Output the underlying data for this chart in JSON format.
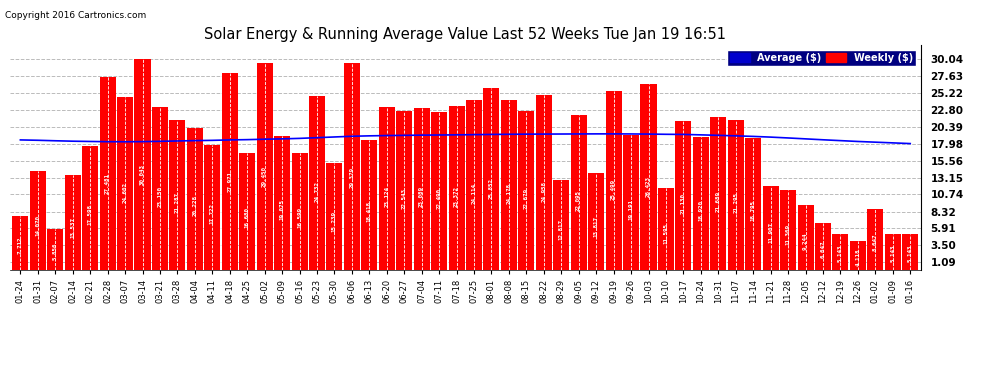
{
  "title": "Solar Energy & Running Average Value Last 52 Weeks Tue Jan 19 16:51",
  "copyright": "Copyright 2016 Cartronics.com",
  "bar_color": "#ff0000",
  "avg_line_color": "#0000ff",
  "background_color": "#ffffff",
  "plot_bg_color": "#ffffff",
  "grid_color": "#bbbbbb",
  "yticks": [
    1.09,
    3.5,
    5.91,
    8.32,
    10.74,
    13.15,
    15.56,
    17.98,
    20.39,
    22.8,
    25.22,
    27.63,
    30.04
  ],
  "ylim": [
    0,
    32.0
  ],
  "legend_avg_color": "#0000cd",
  "legend_weekly_color": "#ff0000",
  "categories": [
    "01-24",
    "01-31",
    "02-07",
    "02-14",
    "02-21",
    "02-28",
    "03-07",
    "03-14",
    "03-21",
    "03-28",
    "04-04",
    "04-11",
    "04-18",
    "04-25",
    "05-02",
    "05-09",
    "05-16",
    "05-23",
    "05-30",
    "06-06",
    "06-13",
    "06-20",
    "06-27",
    "07-04",
    "07-11",
    "07-18",
    "07-25",
    "08-01",
    "08-08",
    "08-15",
    "08-22",
    "08-29",
    "09-05",
    "09-12",
    "09-19",
    "09-26",
    "10-03",
    "10-10",
    "10-17",
    "10-24",
    "10-31",
    "11-07",
    "11-14",
    "11-21",
    "11-28",
    "12-05",
    "12-12",
    "12-19",
    "12-26",
    "01-02",
    "01-09",
    "01-16"
  ],
  "bar_values": [
    7.712,
    14.07,
    5.856,
    13.537,
    17.598,
    27.481,
    24.602,
    30.043,
    23.15,
    21.287,
    20.228,
    17.722,
    27.971,
    16.68,
    29.45,
    19.075,
    16.599,
    24.732,
    15.239,
    29.379,
    18.418,
    23.124,
    22.543,
    23.089,
    22.49,
    23.372,
    24.114,
    25.852,
    24.178,
    22.679,
    24.958,
    12.817,
    22.095,
    13.817,
    25.499,
    19.191,
    26.423,
    11.595,
    21.13,
    18.92,
    21.689,
    21.295,
    18.795,
    11.907,
    11.369,
    9.244,
    6.647,
    5.143,
    4.118,
    8.647,
    5.143,
    5.143
  ],
  "avg_values": [
    18.5,
    18.45,
    18.38,
    18.32,
    18.28,
    18.25,
    18.24,
    18.26,
    18.3,
    18.35,
    18.4,
    18.44,
    18.5,
    18.54,
    18.6,
    18.65,
    18.72,
    18.82,
    18.92,
    19.02,
    19.08,
    19.12,
    19.15,
    19.18,
    19.2,
    19.22,
    19.25,
    19.28,
    19.3,
    19.32,
    19.33,
    19.34,
    19.35,
    19.36,
    19.36,
    19.35,
    19.33,
    19.3,
    19.28,
    19.22,
    19.15,
    19.08,
    19.0,
    18.9,
    18.78,
    18.65,
    18.52,
    18.4,
    18.28,
    18.18,
    18.08,
    17.98
  ]
}
